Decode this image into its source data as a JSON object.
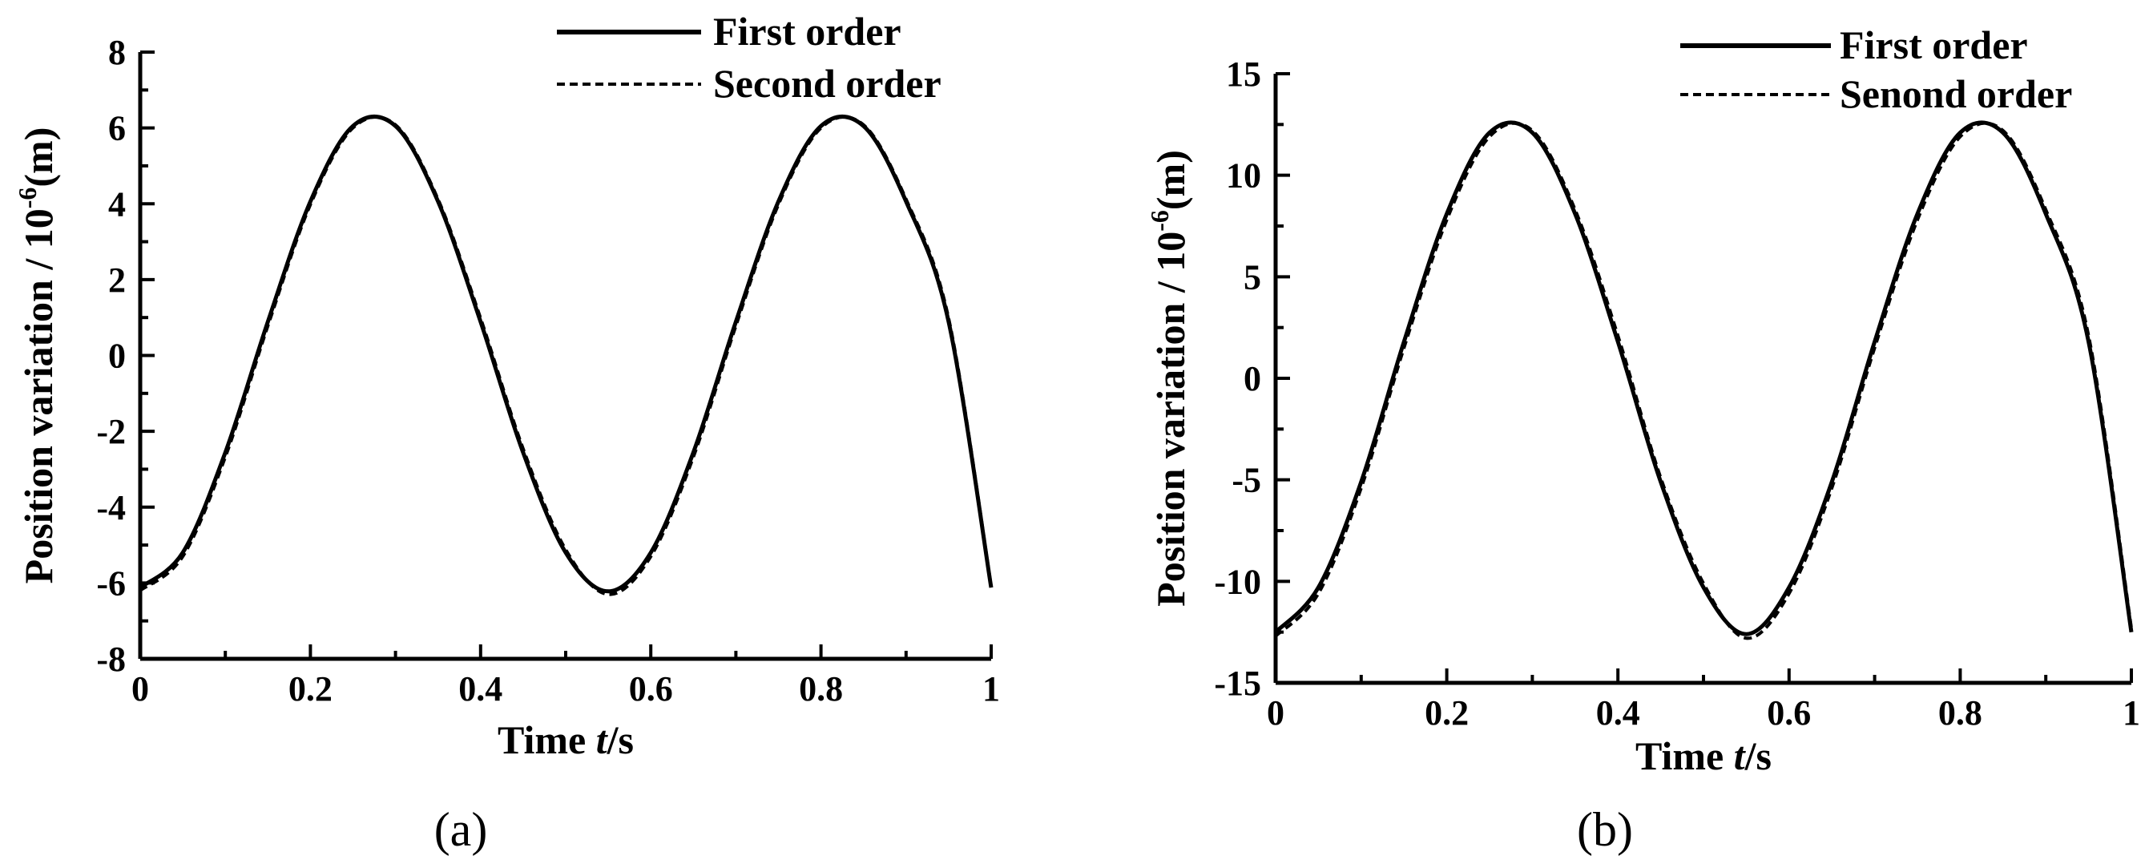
{
  "chart_data": [
    {
      "type": "line",
      "panel_label": "(a)",
      "xlabel_prefix": "Time ",
      "xlabel_var": "t",
      "xlabel_suffix": "/s",
      "ylabel_text": "Position variation  / 10",
      "ylabel_exp": "-6",
      "ylabel_unit": "(m)",
      "xlim": [
        0,
        1
      ],
      "ylim": [
        -8,
        8
      ],
      "xticks": [
        0,
        0.2,
        0.4,
        0.6,
        0.8,
        1
      ],
      "xtick_labels": [
        "0",
        "0.2",
        "0.4",
        "0.6",
        "0.8",
        "1"
      ],
      "yticks": [
        -8,
        -6,
        -4,
        -2,
        0,
        2,
        4,
        6,
        8
      ],
      "ytick_labels": [
        "-8",
        "-6",
        "-4",
        "-2",
        "0",
        "2",
        "4",
        "6",
        "8"
      ],
      "grid": false,
      "legend_position": "top-right",
      "series": [
        {
          "name": "First order",
          "style": "solid",
          "color": "#000000",
          "x": [
            0,
            0.05,
            0.1,
            0.15,
            0.2,
            0.25,
            0.3,
            0.35,
            0.4,
            0.45,
            0.5,
            0.55,
            0.6,
            0.65,
            0.7,
            0.75,
            0.8,
            0.85,
            0.9,
            0.95,
            1.0
          ],
          "y": [
            -6.12,
            -5.2,
            -2.56,
            0.89,
            4.06,
            6.05,
            6.05,
            4.06,
            0.89,
            -2.56,
            -5.2,
            -6.22,
            -5.2,
            -2.56,
            0.89,
            4.06,
            6.05,
            6.05,
            4.06,
            0.89,
            -6.12
          ]
        },
        {
          "name": "Second order",
          "style": "dashed",
          "color": "#000000",
          "x": [
            0,
            0.05,
            0.1,
            0.15,
            0.2,
            0.25,
            0.3,
            0.35,
            0.4,
            0.45,
            0.5,
            0.55,
            0.6,
            0.65,
            0.7,
            0.75,
            0.8,
            0.85,
            0.9,
            0.95,
            1.0
          ],
          "y": [
            -6.2,
            -5.3,
            -2.68,
            0.78,
            3.98,
            6.0,
            6.08,
            4.12,
            0.98,
            -2.46,
            -5.12,
            -6.3,
            -5.3,
            -2.68,
            0.78,
            3.98,
            6.0,
            6.08,
            4.12,
            0.98,
            -6.08
          ]
        }
      ]
    },
    {
      "type": "line",
      "panel_label": "(b)",
      "xlabel_prefix": "Time ",
      "xlabel_var": "t",
      "xlabel_suffix": "/s",
      "ylabel_text": "Position variation  / 10",
      "ylabel_exp": "-6",
      "ylabel_unit": "(m)",
      "xlim": [
        0,
        1
      ],
      "ylim": [
        -15,
        15
      ],
      "xticks": [
        0,
        0.2,
        0.4,
        0.6,
        0.8,
        1
      ],
      "xtick_labels": [
        "0",
        "0.2",
        "0.4",
        "0.6",
        "0.8",
        "1"
      ],
      "yticks": [
        -15,
        -10,
        -5,
        0,
        5,
        10,
        15
      ],
      "ytick_labels": [
        "-15",
        "-10",
        "-5",
        "0",
        "5",
        "10",
        "15"
      ],
      "grid": false,
      "legend_position": "top-right",
      "series": [
        {
          "name": "First order",
          "style": "solid",
          "color": "#000000",
          "x": [
            0,
            0.05,
            0.1,
            0.15,
            0.2,
            0.25,
            0.3,
            0.35,
            0.4,
            0.45,
            0.5,
            0.55,
            0.6,
            0.65,
            0.7,
            0.75,
            0.8,
            0.85,
            0.9,
            0.95,
            1.0
          ],
          "y": [
            -12.5,
            -10.3,
            -5.1,
            1.8,
            8.1,
            12.1,
            12.1,
            8.1,
            1.8,
            -5.1,
            -10.3,
            -12.6,
            -10.3,
            -5.1,
            1.8,
            8.1,
            12.1,
            12.1,
            8.1,
            1.8,
            -12.5
          ]
        },
        {
          "name": "Senond order",
          "style": "dashed",
          "color": "#000000",
          "x": [
            0,
            0.05,
            0.1,
            0.15,
            0.2,
            0.25,
            0.3,
            0.35,
            0.4,
            0.45,
            0.5,
            0.55,
            0.6,
            0.65,
            0.7,
            0.75,
            0.8,
            0.85,
            0.9,
            0.95,
            1.0
          ],
          "y": [
            -12.7,
            -10.6,
            -5.4,
            1.5,
            7.8,
            11.9,
            12.2,
            8.3,
            2.1,
            -4.9,
            -10.1,
            -12.8,
            -10.6,
            -5.4,
            1.5,
            7.8,
            11.9,
            12.2,
            8.3,
            2.1,
            -12.3
          ]
        }
      ]
    }
  ]
}
